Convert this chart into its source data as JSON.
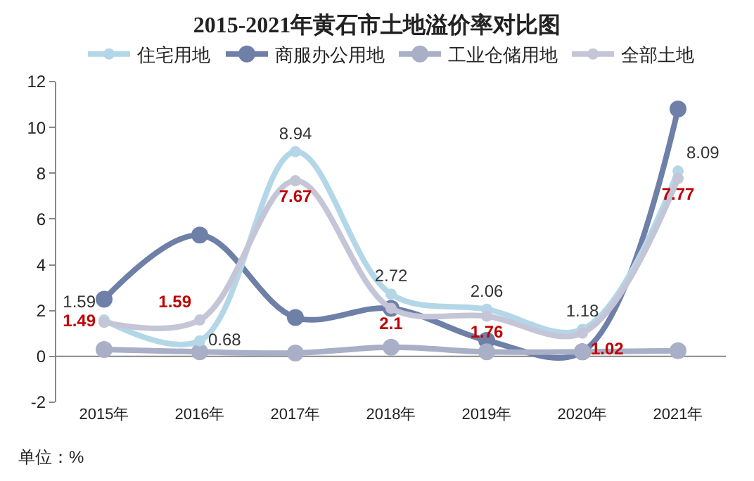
{
  "chart_data": {
    "type": "line",
    "title": "2015-2021年黄石市土地溢价率对比图",
    "categories": [
      "2015年",
      "2016年",
      "2017年",
      "2018年",
      "2019年",
      "2020年",
      "2021年"
    ],
    "series": [
      {
        "name": "住宅用地",
        "color": "#b4d7e8",
        "values": [
          1.59,
          0.68,
          8.94,
          2.72,
          2.06,
          1.18,
          8.09
        ],
        "value_labels": [
          "1.59",
          "0.68",
          "8.94",
          "2.72",
          "2.06",
          "1.18",
          "8.09"
        ]
      },
      {
        "name": "商服办公用地",
        "color": "#6e7fa8",
        "values": [
          2.5,
          5.3,
          1.7,
          2.1,
          0.7,
          0.2,
          10.8
        ]
      },
      {
        "name": "工业仓储用地",
        "color": "#a9afc7",
        "values": [
          0.3,
          0.2,
          0.15,
          0.4,
          0.2,
          0.2,
          0.25
        ]
      },
      {
        "name": "全部土地",
        "color": "#c5c5d8",
        "values": [
          1.49,
          1.59,
          7.67,
          2.1,
          1.76,
          1.02,
          7.77
        ],
        "value_labels": [
          "1.49",
          "1.59",
          "7.67",
          "2.1",
          "1.76",
          "1.02",
          "7.77"
        ]
      }
    ],
    "ylim": [
      -2,
      12
    ],
    "yticks": [
      -2,
      0,
      2,
      4,
      6,
      8,
      10,
      12
    ],
    "grid": false,
    "legend": "top",
    "marker": "circle",
    "line_style": "solid",
    "ref_lines": [
      {
        "axis": "y",
        "value": 0,
        "color": "#888888"
      }
    ],
    "annotations": [
      "单位：%"
    ]
  }
}
